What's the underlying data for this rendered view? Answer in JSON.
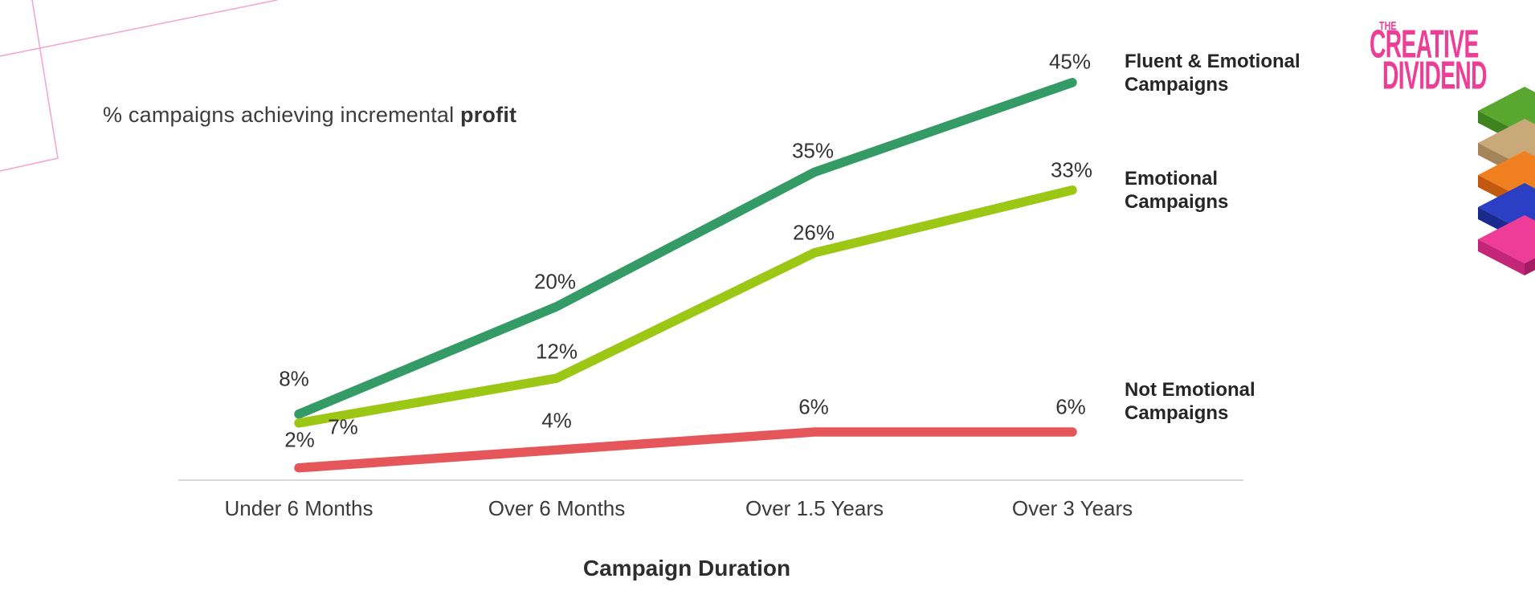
{
  "title": {
    "prefix": "% campaigns achieving incremental ",
    "bold": "profit"
  },
  "chart_data": {
    "type": "line",
    "title": "% campaigns achieving incremental profit",
    "categories": [
      "Under 6 Months",
      "Over 6 Months",
      "Over 1.5 Years",
      "Over 3 Years"
    ],
    "xlabel": "Campaign Duration",
    "ylabel": "% campaigns achieving incremental profit",
    "unit": "%",
    "ylim": [
      0,
      50
    ],
    "grid": false,
    "legend_position": "right",
    "series": [
      {
        "name": "Fluent & Emotional Campaigns",
        "label_lines": [
          "Fluent & Emotional",
          "Campaigns"
        ],
        "color": "#349a66",
        "values": [
          8,
          20,
          35,
          45
        ]
      },
      {
        "name": "Emotional Campaigns",
        "label_lines": [
          "Emotional",
          "Campaigns"
        ],
        "color": "#9cc715",
        "values": [
          7,
          12,
          26,
          33
        ]
      },
      {
        "name": "Not Emotional Campaigns",
        "label_lines": [
          "Not Emotional",
          "Campaigns"
        ],
        "color": "#e45659",
        "values": [
          2,
          4,
          6,
          6
        ]
      }
    ]
  },
  "logo": {
    "the": "THE",
    "name_line1": "CREATIVE",
    "name_line2": "DIVIDEND",
    "color": "#ec3e96"
  },
  "icon": {
    "name": "stacked-layers-icon",
    "layers": [
      {
        "top": "#59a72f",
        "left": "#3f831f",
        "right": "#357118"
      },
      {
        "top": "#c9a87a",
        "left": "#a5845a",
        "right": "#8a6b47"
      },
      {
        "top": "#f0801f",
        "left": "#c2590e",
        "right": "#a84a08"
      },
      {
        "top": "#2a3fc4",
        "left": "#1a2a8f",
        "right": "#141f6e"
      },
      {
        "top": "#ee3d98",
        "left": "#c32578",
        "right": "#a51c64"
      }
    ]
  },
  "colors": {
    "decor": "#f2a3ce",
    "axis": "#d9d9d9"
  }
}
